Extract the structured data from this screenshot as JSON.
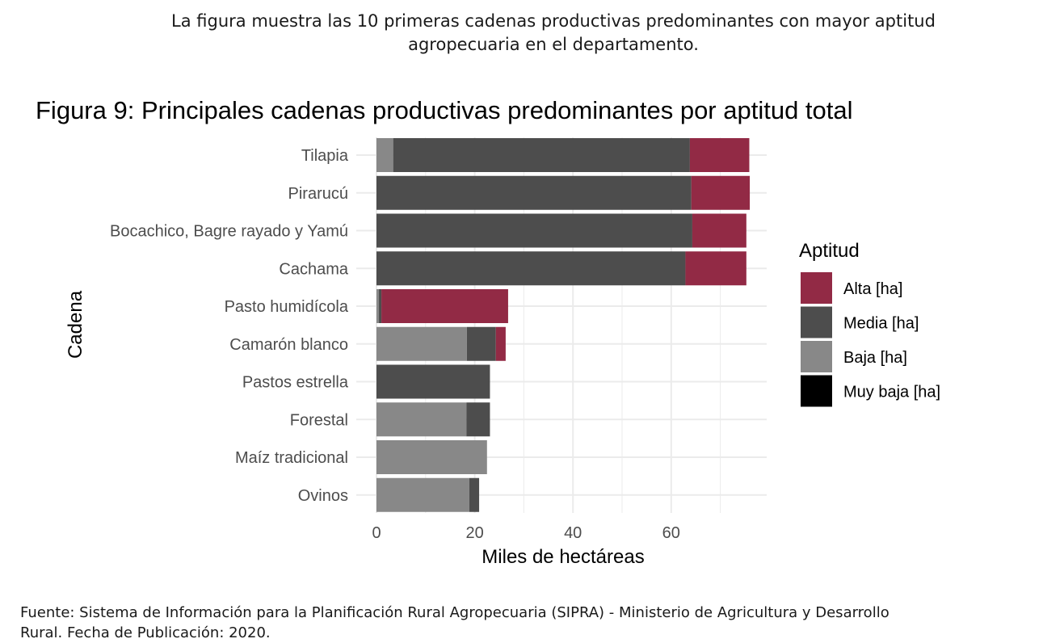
{
  "intro": {
    "line1": "La figura muestra las 10 primeras cadenas productivas predominantes con mayor aptitud",
    "line2": "agropecuaria en el departamento."
  },
  "source": {
    "line1": "Fuente: Sistema de Información para la Planificación Rural Agropecuaria (SIPRA) - Ministerio de Agricultura y Desarrollo",
    "line2": "Rural. Fecha de Publicación: 2020."
  },
  "colors": {
    "alta": "#922a45",
    "media": "#4d4d4d",
    "baja": "#888888",
    "muy_baja": "#000000",
    "grid": "#ebebeb"
  },
  "chart_data": {
    "type": "bar",
    "orientation": "horizontal",
    "stacked": true,
    "title": "Figura 9: Principales cadenas productivas predominantes por aptitud total",
    "xlabel": "Miles de hectáreas",
    "ylabel": "Cadena",
    "xlim": [
      0,
      79
    ],
    "xticks": [
      0,
      20,
      40,
      60
    ],
    "legend_title": "Aptitud",
    "legend_position": "right",
    "grid": true,
    "categories": [
      "Tilapia",
      "Pirarucú",
      "Bocachico, Bagre rayado y Yamú",
      "Cachama",
      "Pasto humidícola",
      "Camarón blanco",
      "Pastos estrella",
      "Forestal",
      "Maíz tradicional",
      "Ovinos"
    ],
    "series": [
      {
        "name": "Muy baja [ha]",
        "key": "muy_baja",
        "values": [
          0,
          0,
          0,
          0,
          0,
          0,
          0,
          0,
          0,
          0
        ]
      },
      {
        "name": "Baja [ha]",
        "key": "baja",
        "values": [
          3.4,
          0,
          0,
          0,
          0.5,
          18.4,
          0,
          18.3,
          22.5,
          18.9
        ]
      },
      {
        "name": "Media [ha]",
        "key": "media",
        "values": [
          60.4,
          64.1,
          64.3,
          62.9,
          0.5,
          5.9,
          23.1,
          4.8,
          0,
          2.0
        ]
      },
      {
        "name": "Alta [ha]",
        "key": "alta",
        "values": [
          12.1,
          11.9,
          11.0,
          12.4,
          25.8,
          2.0,
          0,
          0,
          0,
          0
        ]
      }
    ],
    "legend_order": [
      "alta",
      "media",
      "baja",
      "muy_baja"
    ]
  }
}
